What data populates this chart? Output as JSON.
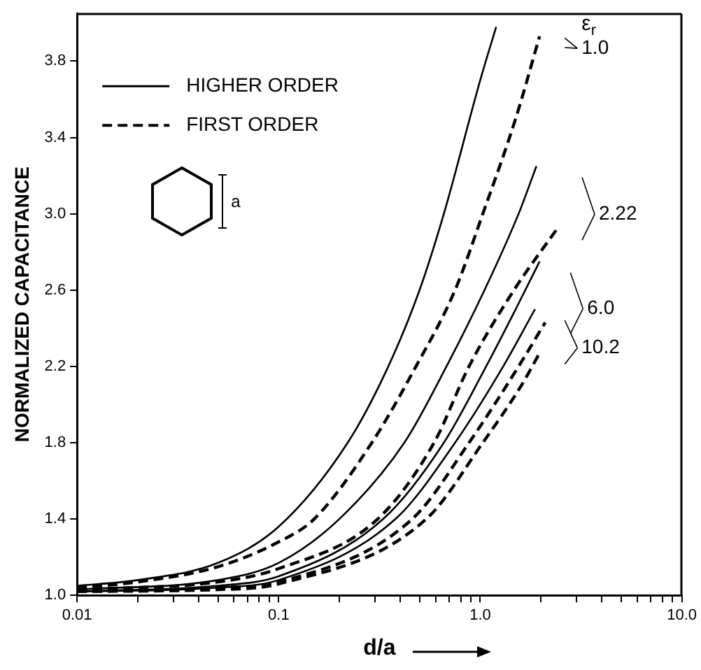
{
  "chart_data": {
    "type": "line",
    "xlabel": "d/a",
    "ylabel": "NORMALIZED CAPACITANCE",
    "log": "x",
    "grid": false,
    "legend": "top left",
    "marker": "none",
    "xlim": [
      0.01,
      10
    ],
    "ylim": [
      1.0,
      4.05
    ],
    "xticks": [
      {
        "value": 0.01,
        "label": "0.01"
      },
      {
        "value": 0.02,
        "label": null
      },
      {
        "value": 0.03,
        "label": null
      },
      {
        "value": 0.04,
        "label": null
      },
      {
        "value": 0.05,
        "label": null
      },
      {
        "value": 0.06,
        "label": null
      },
      {
        "value": 0.07,
        "label": null
      },
      {
        "value": 0.08,
        "label": null
      },
      {
        "value": 0.09,
        "label": null
      },
      {
        "value": 0.1,
        "label": "0.1"
      },
      {
        "value": 0.2,
        "label": null
      },
      {
        "value": 0.3,
        "label": null
      },
      {
        "value": 0.4,
        "label": null
      },
      {
        "value": 0.5,
        "label": null
      },
      {
        "value": 0.6,
        "label": null
      },
      {
        "value": 0.7,
        "label": null
      },
      {
        "value": 0.8,
        "label": null
      },
      {
        "value": 0.9,
        "label": null
      },
      {
        "value": 1,
        "label": "1.0"
      },
      {
        "value": 2,
        "label": null
      },
      {
        "value": 3,
        "label": null
      },
      {
        "value": 4,
        "label": null
      },
      {
        "value": 5,
        "label": null
      },
      {
        "value": 6,
        "label": null
      },
      {
        "value": 7,
        "label": null
      },
      {
        "value": 8,
        "label": null
      },
      {
        "value": 9,
        "label": null
      },
      {
        "value": 10,
        "label": "10.0"
      }
    ],
    "yticks": [
      {
        "value": 1,
        "label": "1.0"
      },
      1.4,
      1.8,
      2.2,
      2.6,
      {
        "value": 3,
        "label": "3.0"
      },
      3.4,
      3.8
    ],
    "series": [
      {
        "name": "HIGHER ORDER",
        "color": "#000000",
        "line_style": "solid",
        "x": [
          0.01,
          0.02,
          0.05,
          0.1,
          0.22,
          0.35,
          0.5,
          0.66,
          1.0,
          1.2
        ],
        "values": [
          1.05,
          1.08,
          1.17,
          1.36,
          1.8,
          2.2,
          2.6,
          3.0,
          3.7,
          3.98
        ]
      },
      {
        "name": "FIRST ORDER",
        "color": "#000000",
        "line_style": "dashed",
        "x": [
          0.01,
          0.02,
          0.05,
          0.1,
          0.15,
          0.29,
          0.48,
          0.75,
          1.03,
          1.5,
          1.97
        ],
        "values": [
          1.04,
          1.07,
          1.15,
          1.28,
          1.4,
          1.8,
          2.2,
          2.6,
          3.0,
          3.5,
          3.93
        ]
      },
      {
        "color": "#000000",
        "line_style": "solid",
        "x": [
          0.01,
          0.05,
          0.1,
          0.2,
          0.42,
          0.68,
          1.05,
          1.55,
          1.9
        ],
        "values": [
          1.03,
          1.08,
          1.17,
          1.4,
          1.8,
          2.2,
          2.6,
          3.0,
          3.25
        ]
      },
      {
        "color": "#000000",
        "line_style": "dashed",
        "x": [
          0.01,
          0.05,
          0.1,
          0.31,
          0.59,
          0.88,
          1.47,
          2.4
        ],
        "values": [
          1.03,
          1.07,
          1.14,
          1.4,
          1.8,
          2.2,
          2.6,
          2.92
        ]
      },
      {
        "color": "#000000",
        "line_style": "solid",
        "x": [
          0.01,
          0.05,
          0.1,
          0.33,
          0.66,
          1.07,
          1.5,
          1.97
        ],
        "values": [
          1.02,
          1.05,
          1.1,
          1.4,
          1.8,
          2.2,
          2.5,
          2.75
        ]
      },
      {
        "color": "#000000",
        "line_style": "dashed",
        "x": [
          0.01,
          0.05,
          0.1,
          0.46,
          0.88,
          1.55,
          2.1
        ],
        "values": [
          1.02,
          1.04,
          1.07,
          1.4,
          1.8,
          2.2,
          2.43
        ]
      },
      {
        "color": "#000000",
        "line_style": "solid",
        "x": [
          0.01,
          0.05,
          0.1,
          0.38,
          0.75,
          1.3,
          1.87
        ],
        "values": [
          1.02,
          1.04,
          1.08,
          1.4,
          1.8,
          2.2,
          2.5
        ]
      },
      {
        "color": "#000000",
        "line_style": "dashed",
        "x": [
          0.01,
          0.05,
          0.1,
          0.54,
          1.03,
          1.6,
          1.97
        ],
        "values": [
          1.02,
          1.03,
          1.06,
          1.4,
          1.8,
          2.1,
          2.27
        ]
      }
    ],
    "annotations": [
      "ε$_{r}$",
      "a",
      "1.0",
      "2.22",
      "6.0",
      "10.2"
    ]
  }
}
